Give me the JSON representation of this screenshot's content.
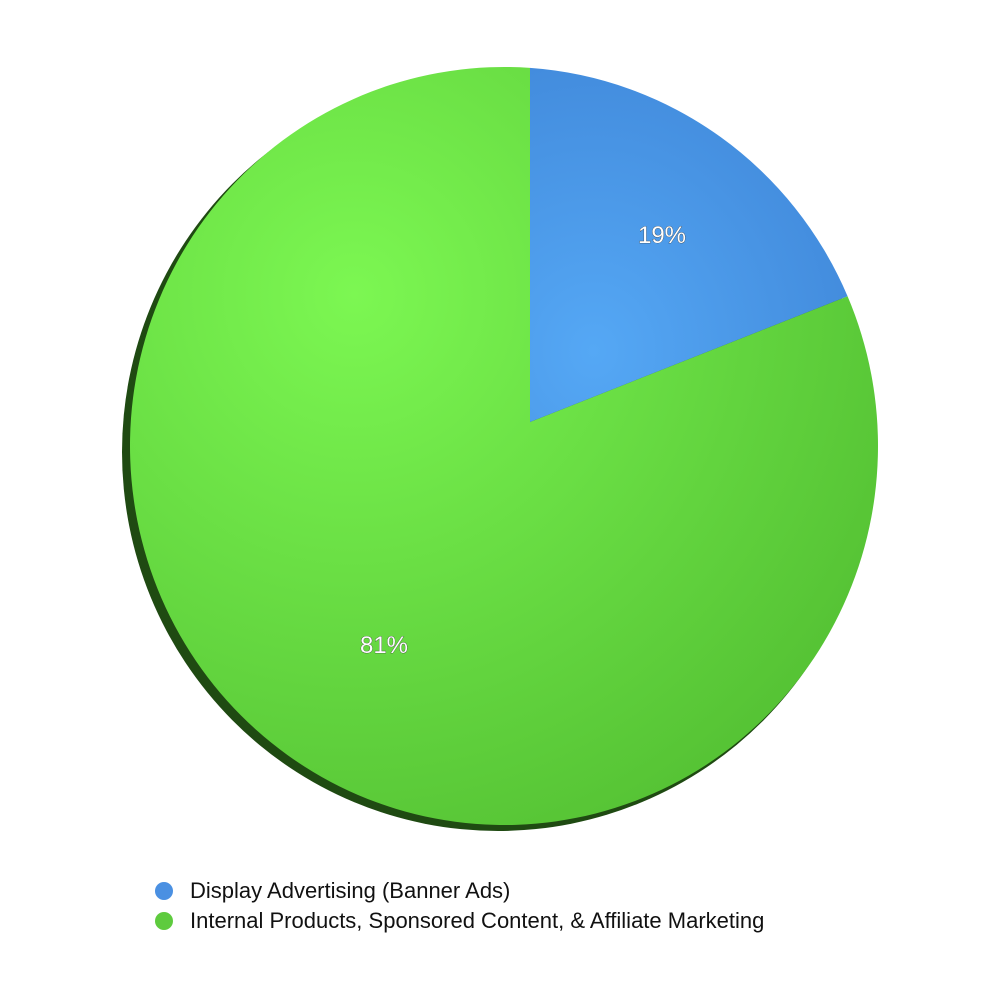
{
  "chart_data": {
    "type": "pie",
    "title": "",
    "slices": [
      {
        "name": "Display Advertising (Banner Ads)",
        "value": 19,
        "label": "19%",
        "color": "#4a90e2"
      },
      {
        "name": "Internal Products, Sponsored Content, & Affiliate Marketing",
        "value": 81,
        "label": "81%",
        "color": "#5ecb3e"
      }
    ],
    "legend_position": "bottom"
  }
}
